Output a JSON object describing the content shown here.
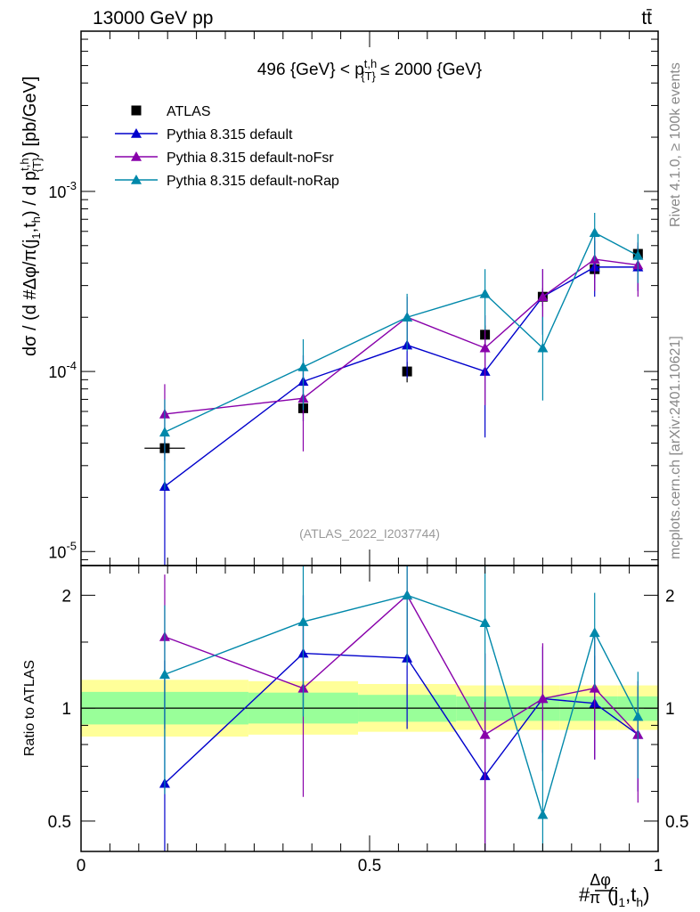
{
  "header": {
    "energy_label": "13000 GeV pp",
    "process_label": "tt̄",
    "rivet_label": "Rivet 4.1.0, ≥ 100k events",
    "mcplots_label": "mcplots.cern.ch [arXiv:2401.10621]"
  },
  "chart_data": [
    {
      "type": "scatter",
      "name": "main-panel",
      "title": "496 {GeV} < p_{T}^{t,h} ≤ 2000 {GeV}",
      "ylabel": "dσ / (d #Δφ/π(j1,th) / d p_{T}^{t,h}) [pb/GeV]",
      "yscale": "log",
      "xlim": [
        0,
        1
      ],
      "ylim": [
        8.36e-06,
        0.00776
      ],
      "watermark": "(ATLAS_2022_I2037744)",
      "y_tick_labels": [
        "10^-5",
        "10^-4",
        "10^-3"
      ],
      "x": [
        0.145,
        0.385,
        0.565,
        0.7,
        0.8,
        0.89,
        0.965
      ],
      "xerr": [
        0.035,
        0.0,
        0.0,
        0.0,
        0.0,
        0.0,
        0.0
      ],
      "series": [
        {
          "name": "ATLAS",
          "color": "#000000",
          "marker": "square",
          "values": [
            3.75e-05,
            6.25e-05,
            0.0001,
            0.00016,
            0.00026,
            0.00037,
            0.00045
          ],
          "err_low": [
            3e-06,
            5e-06,
            1.3e-05,
            2e-05,
            3e-05,
            4e-05,
            5e-05
          ],
          "err_high": [
            3e-06,
            5e-06,
            1.3e-05,
            2e-05,
            3e-05,
            4e-05,
            5e-05
          ]
        },
        {
          "name": "Pythia 8.315 default",
          "color": "#0000cc",
          "marker": "triangle",
          "values": [
            2.3e-05,
            8.8e-05,
            0.00014,
            0.0001,
            0.00026,
            0.00038,
            0.00038
          ],
          "err_low": [
            2.29e-05,
            3.5e-05,
            4.8e-05,
            5.7e-05,
            0.0001,
            0.00012,
            0.0001
          ],
          "err_high": [
            2.6e-05,
            3.5e-05,
            6e-05,
            5.5e-05,
            0.00011,
            0.00015,
            0.00011
          ]
        },
        {
          "name": "Pythia 8.315 default-noFsr",
          "color": "#8800aa",
          "marker": "triangle",
          "values": [
            5.8e-05,
            7.1e-05,
            0.0002,
            0.000135,
            0.00026,
            0.00042,
            0.00039
          ],
          "err_low": [
            2.6e-05,
            3.5e-05,
            6e-05,
            7e-05,
            9e-05,
            0.00014,
            0.00013
          ],
          "err_high": [
            2.7e-05,
            3.5e-05,
            6e-05,
            7e-05,
            0.00011,
            0.00015,
            0.00013
          ]
        },
        {
          "name": "Pythia 8.315 default-noRap",
          "color": "#0088aa",
          "marker": "triangle",
          "values": [
            4.6e-05,
            0.000106,
            0.0002,
            0.00027,
            0.000135,
            0.00059,
            0.00044
          ],
          "err_low": [
            2.4e-05,
            4.5e-05,
            7e-05,
            0.0001,
            6.6e-05,
            0.00018,
            0.00013
          ],
          "err_high": [
            2.4e-05,
            4.5e-05,
            7e-05,
            0.0001,
            6.6e-05,
            0.00017,
            0.00014
          ]
        }
      ]
    },
    {
      "type": "scatter",
      "name": "ratio-panel",
      "ylabel": "Ratio to ATLAS",
      "xlabel": "#Δφ/π(j1,th)",
      "yscale": "log",
      "xlim": [
        0,
        1
      ],
      "ylim": [
        0.415,
        2.4
      ],
      "x_tick_labels": [
        "0",
        "0.5",
        "1"
      ],
      "y_tick_labels": [
        "0.5",
        "1",
        "2"
      ],
      "bands": {
        "edges": [
          0.0,
          0.29,
          0.48,
          0.65,
          0.75,
          0.83,
          0.93,
          1.0
        ],
        "green_low": [
          0.905,
          0.91,
          0.92,
          0.925,
          0.925,
          0.925,
          0.925
        ],
        "green_high": [
          1.105,
          1.1,
          1.085,
          1.075,
          1.075,
          1.075,
          1.075
        ],
        "yellow_low": [
          0.84,
          0.85,
          0.865,
          0.875,
          0.875,
          0.875,
          0.875
        ],
        "yellow_high": [
          1.19,
          1.18,
          1.16,
          1.15,
          1.15,
          1.15,
          1.15
        ],
        "green_color": "#99ff99",
        "yellow_color": "#ffff99"
      },
      "x": [
        0.145,
        0.385,
        0.565,
        0.7,
        0.8,
        0.89,
        0.965
      ],
      "series": [
        {
          "name": "Pythia 8.315 default",
          "color": "#0000cc",
          "values": [
            0.63,
            1.4,
            1.36,
            0.66,
            1.06,
            1.03,
            0.85
          ],
          "err_low": [
            0.63,
            0.4,
            0.48,
            0.31,
            0.3,
            0.3,
            0.25
          ],
          "err_high": [
            0.71,
            0.6,
            0.55,
            0.4,
            0.4,
            0.35,
            0.29
          ]
        },
        {
          "name": "Pythia 8.315 default-noFsr",
          "color": "#8800aa",
          "values": [
            1.55,
            1.13,
            2.0,
            0.85,
            1.06,
            1.13,
            0.85
          ],
          "err_low": [
            0.67,
            0.55,
            0.7,
            0.48,
            0.38,
            0.4,
            0.29
          ],
          "err_high": [
            0.72,
            0.6,
            0.65,
            0.55,
            0.43,
            0.45,
            0.33
          ]
        },
        {
          "name": "Pythia 8.315 default-noRap",
          "color": "#0088aa",
          "values": [
            1.23,
            1.7,
            2.0,
            1.69,
            0.52,
            1.59,
            0.95
          ],
          "err_low": [
            0.64,
            0.75,
            0.7,
            0.65,
            0.3,
            0.46,
            0.3
          ],
          "err_high": [
            0.65,
            0.9,
            0.75,
            0.7,
            0.3,
            0.44,
            0.3
          ]
        }
      ]
    }
  ]
}
